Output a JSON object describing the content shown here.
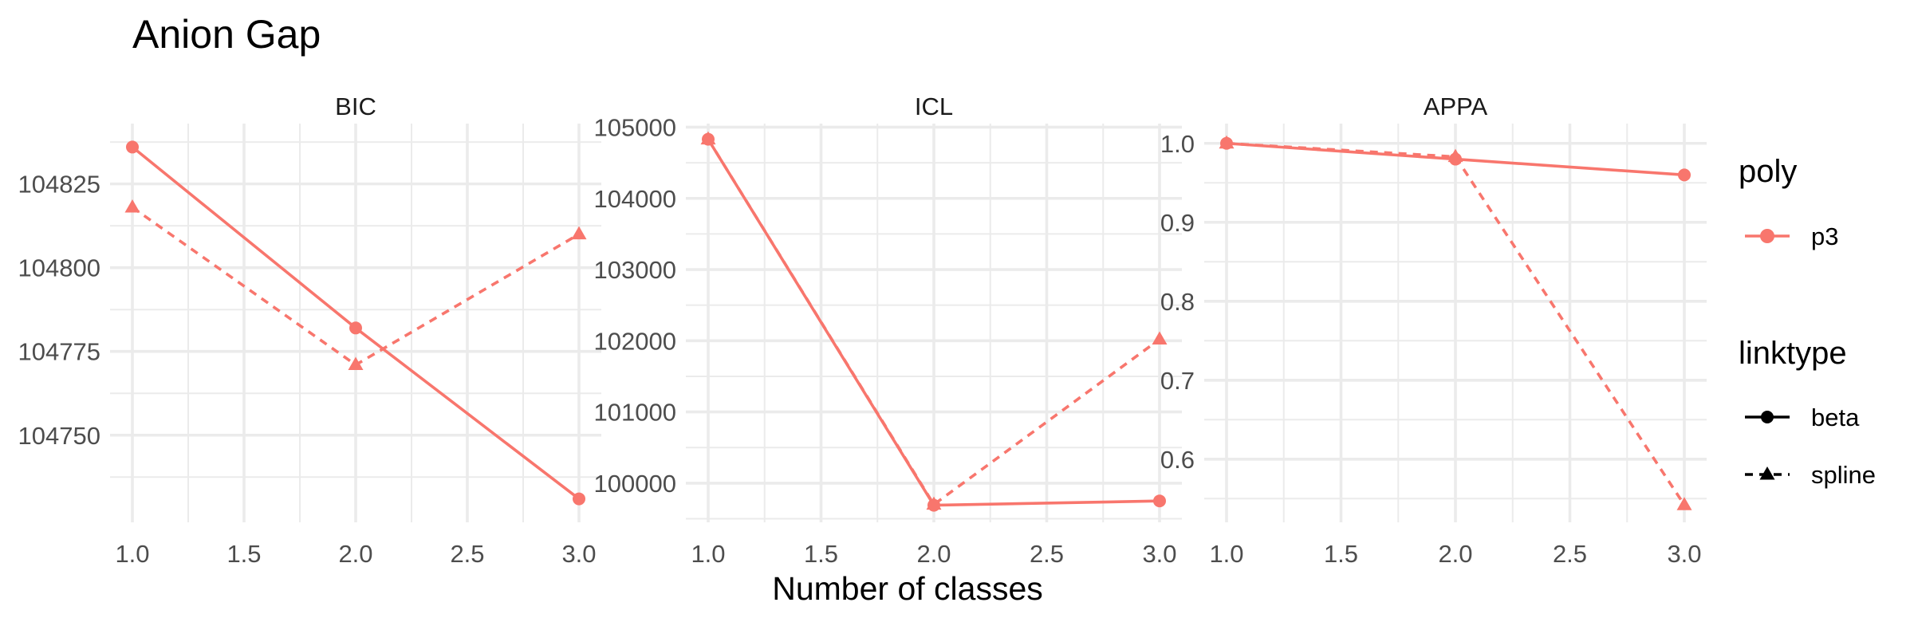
{
  "chart_data": {
    "type": "line",
    "title": "Anion Gap",
    "xlabel": "Number of classes",
    "ylabel": "",
    "grid": true,
    "legend_position": "right",
    "color": "#F8766D",
    "panels": [
      {
        "label": "BIC",
        "xlim": [
          1.0,
          3.0
        ],
        "ylim": [
          104724,
          104843
        ],
        "xticks": [
          "1.0",
          "1.5",
          "2.0",
          "2.5",
          "3.0"
        ],
        "yticks": [
          "104750",
          "104775",
          "104800",
          "104825"
        ],
        "series": [
          {
            "name": "beta",
            "x": [
              1,
              2,
              3
            ],
            "y": [
              104836,
              104782,
              104731
            ]
          },
          {
            "name": "spline",
            "x": [
              1,
              2,
              3
            ],
            "y": [
              104818,
              104771,
              104810
            ]
          }
        ]
      },
      {
        "label": "ICL",
        "xlim": [
          1.0,
          3.0
        ],
        "ylim": [
          99450,
          105050
        ],
        "xticks": [
          "1.0",
          "1.5",
          "2.0",
          "2.5",
          "3.0"
        ],
        "yticks": [
          "100000",
          "101000",
          "102000",
          "103000",
          "104000",
          "105000"
        ],
        "series": [
          {
            "name": "beta",
            "x": [
              1,
              2,
              3
            ],
            "y": [
              104830,
              99690,
              99750
            ]
          },
          {
            "name": "spline",
            "x": [
              1,
              2,
              3
            ],
            "y": [
              104830,
              99700,
              102020
            ]
          }
        ]
      },
      {
        "label": "APPA",
        "xlim": [
          1.0,
          3.0
        ],
        "ylim": [
          0.52,
          1.025
        ],
        "xticks": [
          "1.0",
          "1.5",
          "2.0",
          "2.5",
          "3.0"
        ],
        "yticks": [
          "0.6",
          "0.7",
          "0.8",
          "0.9",
          "1.0"
        ],
        "series": [
          {
            "name": "beta",
            "x": [
              1,
              2,
              3
            ],
            "y": [
              1.0,
              0.98,
              0.96
            ]
          },
          {
            "name": "spline",
            "x": [
              1,
              2,
              3
            ],
            "y": [
              1.0,
              0.983,
              0.542
            ]
          }
        ]
      }
    ],
    "legend": {
      "poly": {
        "title": "poly",
        "items": [
          "p3"
        ]
      },
      "linktype": {
        "title": "linktype",
        "items": [
          "beta",
          "spline"
        ]
      }
    }
  }
}
